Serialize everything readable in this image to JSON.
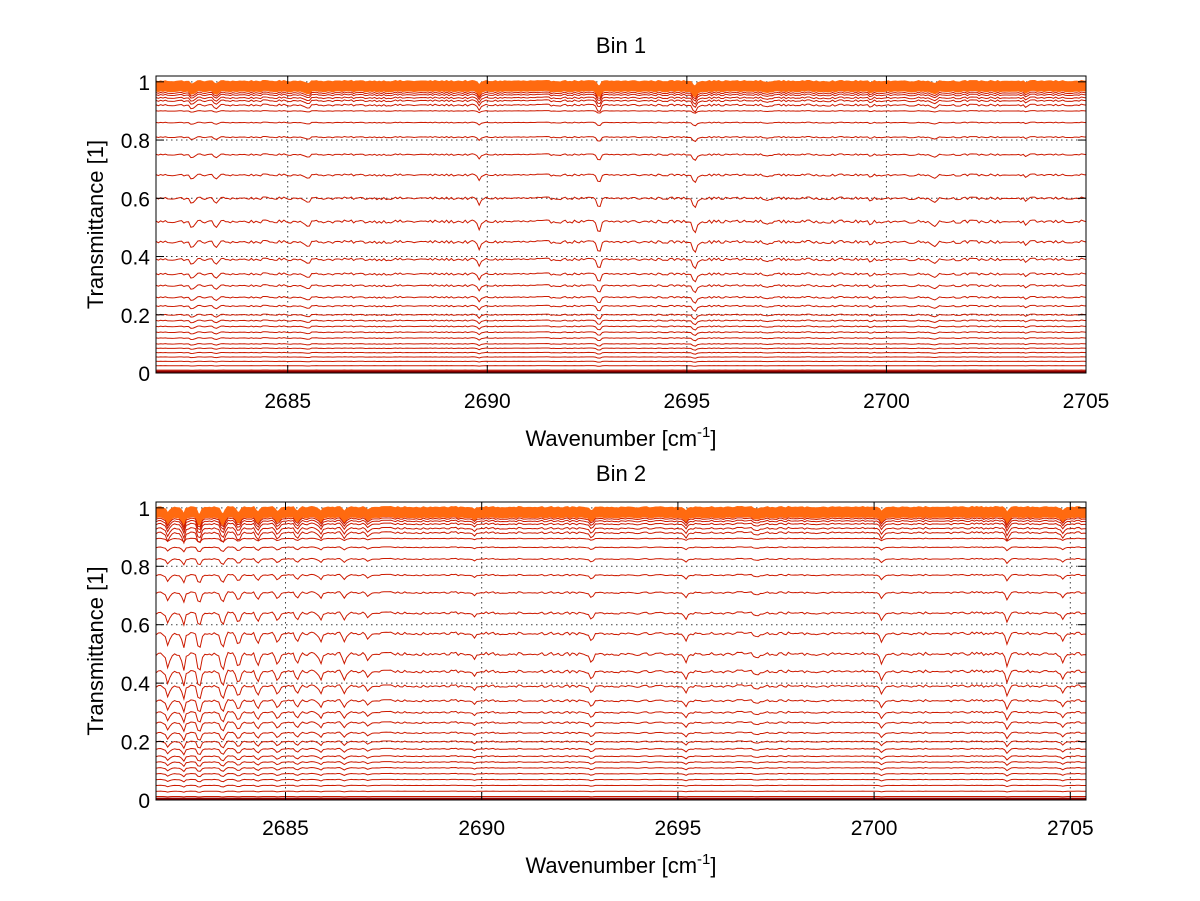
{
  "chart_data": [
    {
      "type": "line",
      "title": "Bin 1",
      "xlabel": "Wavenumber [cm",
      "xlabel_sup": "-1",
      "xlabel_close": "]",
      "ylabel": "Transmittance [1]",
      "xlim": [
        2681.7,
        2705.0
      ],
      "ylim": [
        0,
        1.02
      ],
      "xticks": [
        2685,
        2690,
        2695,
        2700,
        2705
      ],
      "xtick_labels": [
        "2685",
        "2690",
        "2695",
        "2700",
        "2705"
      ],
      "yticks": [
        0,
        0.2,
        0.4,
        0.6,
        0.8,
        1
      ],
      "ytick_labels": [
        "0",
        "0.2",
        "0.4",
        "0.6",
        "0.8",
        "1"
      ],
      "grid": true,
      "line_color": "#cc1a00",
      "top_line_color": "#ff6a10",
      "n_points": 400,
      "absorption_lines": [
        {
          "x": 2682.6,
          "depth": 0.6
        },
        {
          "x": 2683.2,
          "depth": 0.5
        },
        {
          "x": 2685.5,
          "depth": 0.4
        },
        {
          "x": 2689.8,
          "depth": 0.6
        },
        {
          "x": 2692.8,
          "depth": 1.0
        },
        {
          "x": 2695.2,
          "depth": 0.9
        },
        {
          "x": 2697.0,
          "depth": 0.3
        },
        {
          "x": 2699.6,
          "depth": 0.3
        },
        {
          "x": 2701.2,
          "depth": 0.4
        },
        {
          "x": 2703.5,
          "depth": 0.3
        }
      ],
      "series_levels": [
        1.0,
        0.995,
        0.99,
        0.985,
        0.98,
        0.975,
        0.97,
        0.962,
        0.955,
        0.945,
        0.935,
        0.92,
        0.9,
        0.86,
        0.81,
        0.75,
        0.68,
        0.6,
        0.52,
        0.45,
        0.39,
        0.34,
        0.3,
        0.26,
        0.23,
        0.2,
        0.18,
        0.16,
        0.14,
        0.12,
        0.1,
        0.085,
        0.07,
        0.055,
        0.04,
        0.025,
        0.01,
        0.004
      ]
    },
    {
      "type": "line",
      "title": "Bin 2",
      "xlabel": "Wavenumber [cm",
      "xlabel_sup": "-1",
      "xlabel_close": "]",
      "ylabel": "Transmittance [1]",
      "xlim": [
        2681.7,
        2705.4
      ],
      "ylim": [
        0,
        1.02
      ],
      "xticks": [
        2685,
        2690,
        2695,
        2700,
        2705
      ],
      "xtick_labels": [
        "2685",
        "2690",
        "2695",
        "2700",
        "2705"
      ],
      "yticks": [
        0,
        0.2,
        0.4,
        0.6,
        0.8,
        1
      ],
      "ytick_labels": [
        "0",
        "0.2",
        "0.4",
        "0.6",
        "0.8",
        "1"
      ],
      "grid": true,
      "line_color": "#cc1a00",
      "top_line_color": "#ff6a10",
      "n_points": 400,
      "absorption_lines": [
        {
          "x": 2682.0,
          "depth": 1.0
        },
        {
          "x": 2682.4,
          "depth": 1.2
        },
        {
          "x": 2682.8,
          "depth": 1.6
        },
        {
          "x": 2683.4,
          "depth": 1.3
        },
        {
          "x": 2683.8,
          "depth": 1.0
        },
        {
          "x": 2684.3,
          "depth": 0.9
        },
        {
          "x": 2684.8,
          "depth": 0.8
        },
        {
          "x": 2685.3,
          "depth": 0.7
        },
        {
          "x": 2685.9,
          "depth": 0.8
        },
        {
          "x": 2686.5,
          "depth": 0.7
        },
        {
          "x": 2687.1,
          "depth": 0.5
        },
        {
          "x": 2689.8,
          "depth": 0.4
        },
        {
          "x": 2692.8,
          "depth": 0.6
        },
        {
          "x": 2695.2,
          "depth": 0.8
        },
        {
          "x": 2697.0,
          "depth": 0.3
        },
        {
          "x": 2700.2,
          "depth": 0.8
        },
        {
          "x": 2703.4,
          "depth": 0.9
        },
        {
          "x": 2704.8,
          "depth": 0.6
        }
      ],
      "series_levels": [
        1.0,
        0.995,
        0.99,
        0.985,
        0.98,
        0.975,
        0.97,
        0.963,
        0.955,
        0.945,
        0.93,
        0.915,
        0.895,
        0.865,
        0.825,
        0.77,
        0.71,
        0.64,
        0.57,
        0.5,
        0.44,
        0.39,
        0.34,
        0.3,
        0.265,
        0.23,
        0.2,
        0.175,
        0.15,
        0.13,
        0.11,
        0.09,
        0.07,
        0.05,
        0.03,
        0.012,
        0.004
      ]
    }
  ]
}
